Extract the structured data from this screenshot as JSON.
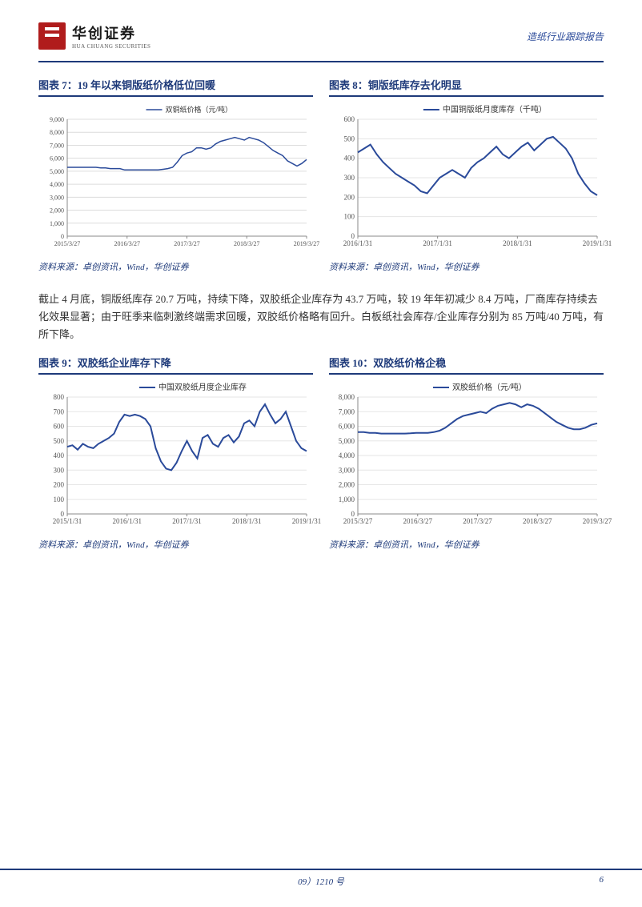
{
  "header": {
    "logo_cn": "华创证券",
    "logo_en": "HUA CHUANG SECURITIES",
    "report_title": "造纸行业跟踪报告"
  },
  "body_text": "截止 4 月底，铜版纸库存 20.7 万吨，持续下降，双胶纸企业库存为 43.7 万吨，较 19 年年初减少 8.4 万吨，厂商库存持续去化效果显著；由于旺季来临刺激终端需求回暖，双胶纸价格略有回升。白板纸社会库存/企业库存分别为 85 万吨/40 万吨，有所下降。",
  "source_text": "资料来源：卓创资讯，Wind，华创证券",
  "footer": {
    "center": "09）1210 号",
    "page": "6"
  },
  "colors": {
    "brand_blue": "#1e3a7a",
    "line_blue": "#2a4a9a",
    "grid": "#dcdcdc",
    "axis": "#888888",
    "bg": "#ffffff",
    "text": "#333333"
  },
  "chart7": {
    "title": "图表 7：19 年以来铜版纸价格低位回暖",
    "type": "line",
    "legend": "双铜纸价格（元/吨）",
    "xlabels": [
      "2015/3/27",
      "2016/3/27",
      "2017/3/27",
      "2018/3/27",
      "2019/3/27"
    ],
    "ylim": [
      0,
      9000
    ],
    "ytick_step": 1000,
    "line_color": "#2a4a9a",
    "line_width": 1.5,
    "label_fontsize": 8,
    "grid_color": "#dcdcdc",
    "data": [
      5300,
      5300,
      5300,
      5300,
      5300,
      5300,
      5300,
      5250,
      5250,
      5200,
      5200,
      5200,
      5100,
      5100,
      5100,
      5100,
      5100,
      5100,
      5100,
      5100,
      5150,
      5200,
      5300,
      5700,
      6200,
      6400,
      6500,
      6800,
      6800,
      6700,
      6800,
      7100,
      7300,
      7400,
      7500,
      7600,
      7500,
      7400,
      7600,
      7500,
      7400,
      7200,
      6900,
      6600,
      6400,
      6200,
      5800,
      5600,
      5400,
      5600,
      5900
    ]
  },
  "chart8": {
    "title": "图表 8：铜版纸库存去化明显",
    "type": "line",
    "legend": "中国铜版纸月度库存（千吨）",
    "xlabels": [
      "2016/1/31",
      "2017/1/31",
      "2018/1/31",
      "2019/1/31"
    ],
    "ylim": [
      0,
      600
    ],
    "ytick_step": 100,
    "line_color": "#2a4a9a",
    "line_width": 2,
    "label_fontsize": 9,
    "grid_color": "#e5e5e5",
    "data": [
      430,
      450,
      470,
      420,
      380,
      350,
      320,
      300,
      280,
      260,
      230,
      220,
      260,
      300,
      320,
      340,
      320,
      300,
      350,
      380,
      400,
      430,
      460,
      420,
      400,
      430,
      460,
      480,
      440,
      470,
      500,
      510,
      480,
      450,
      400,
      320,
      270,
      230,
      210
    ]
  },
  "chart9": {
    "title": "图表 9：双胶纸企业库存下降",
    "type": "line",
    "legend": "中国双胶纸月度企业库存",
    "xlabels": [
      "2015/1/31",
      "2016/1/31",
      "2017/1/31",
      "2018/1/31",
      "2019/1/31"
    ],
    "ylim": [
      0,
      800
    ],
    "ytick_step": 100,
    "line_color": "#2a4a9a",
    "line_width": 2,
    "label_fontsize": 9,
    "grid_color": "#e5e5e5",
    "data": [
      460,
      470,
      440,
      480,
      460,
      450,
      480,
      500,
      520,
      550,
      630,
      680,
      670,
      680,
      670,
      650,
      600,
      450,
      360,
      310,
      300,
      350,
      430,
      500,
      430,
      380,
      520,
      540,
      480,
      460,
      520,
      540,
      490,
      530,
      620,
      640,
      600,
      700,
      750,
      680,
      620,
      650,
      700,
      600,
      500,
      450,
      430
    ]
  },
  "chart10": {
    "title": "图表 10：双胶纸价格企稳",
    "type": "line",
    "legend": "双胶纸价格（元/吨）",
    "xlabels": [
      "2015/3/27",
      "2016/3/27",
      "2017/3/27",
      "2018/3/27",
      "2019/3/27"
    ],
    "ylim": [
      0,
      8000
    ],
    "ytick_step": 1000,
    "line_color": "#2a4a9a",
    "line_width": 2,
    "label_fontsize": 9,
    "grid_color": "#e5e5e5",
    "data": [
      5600,
      5600,
      5550,
      5550,
      5500,
      5500,
      5500,
      5500,
      5500,
      5520,
      5550,
      5550,
      5550,
      5600,
      5700,
      5900,
      6200,
      6500,
      6700,
      6800,
      6900,
      7000,
      6900,
      7200,
      7400,
      7500,
      7600,
      7500,
      7300,
      7500,
      7400,
      7200,
      6900,
      6600,
      6300,
      6100,
      5900,
      5800,
      5800,
      5900,
      6100,
      6200
    ]
  }
}
